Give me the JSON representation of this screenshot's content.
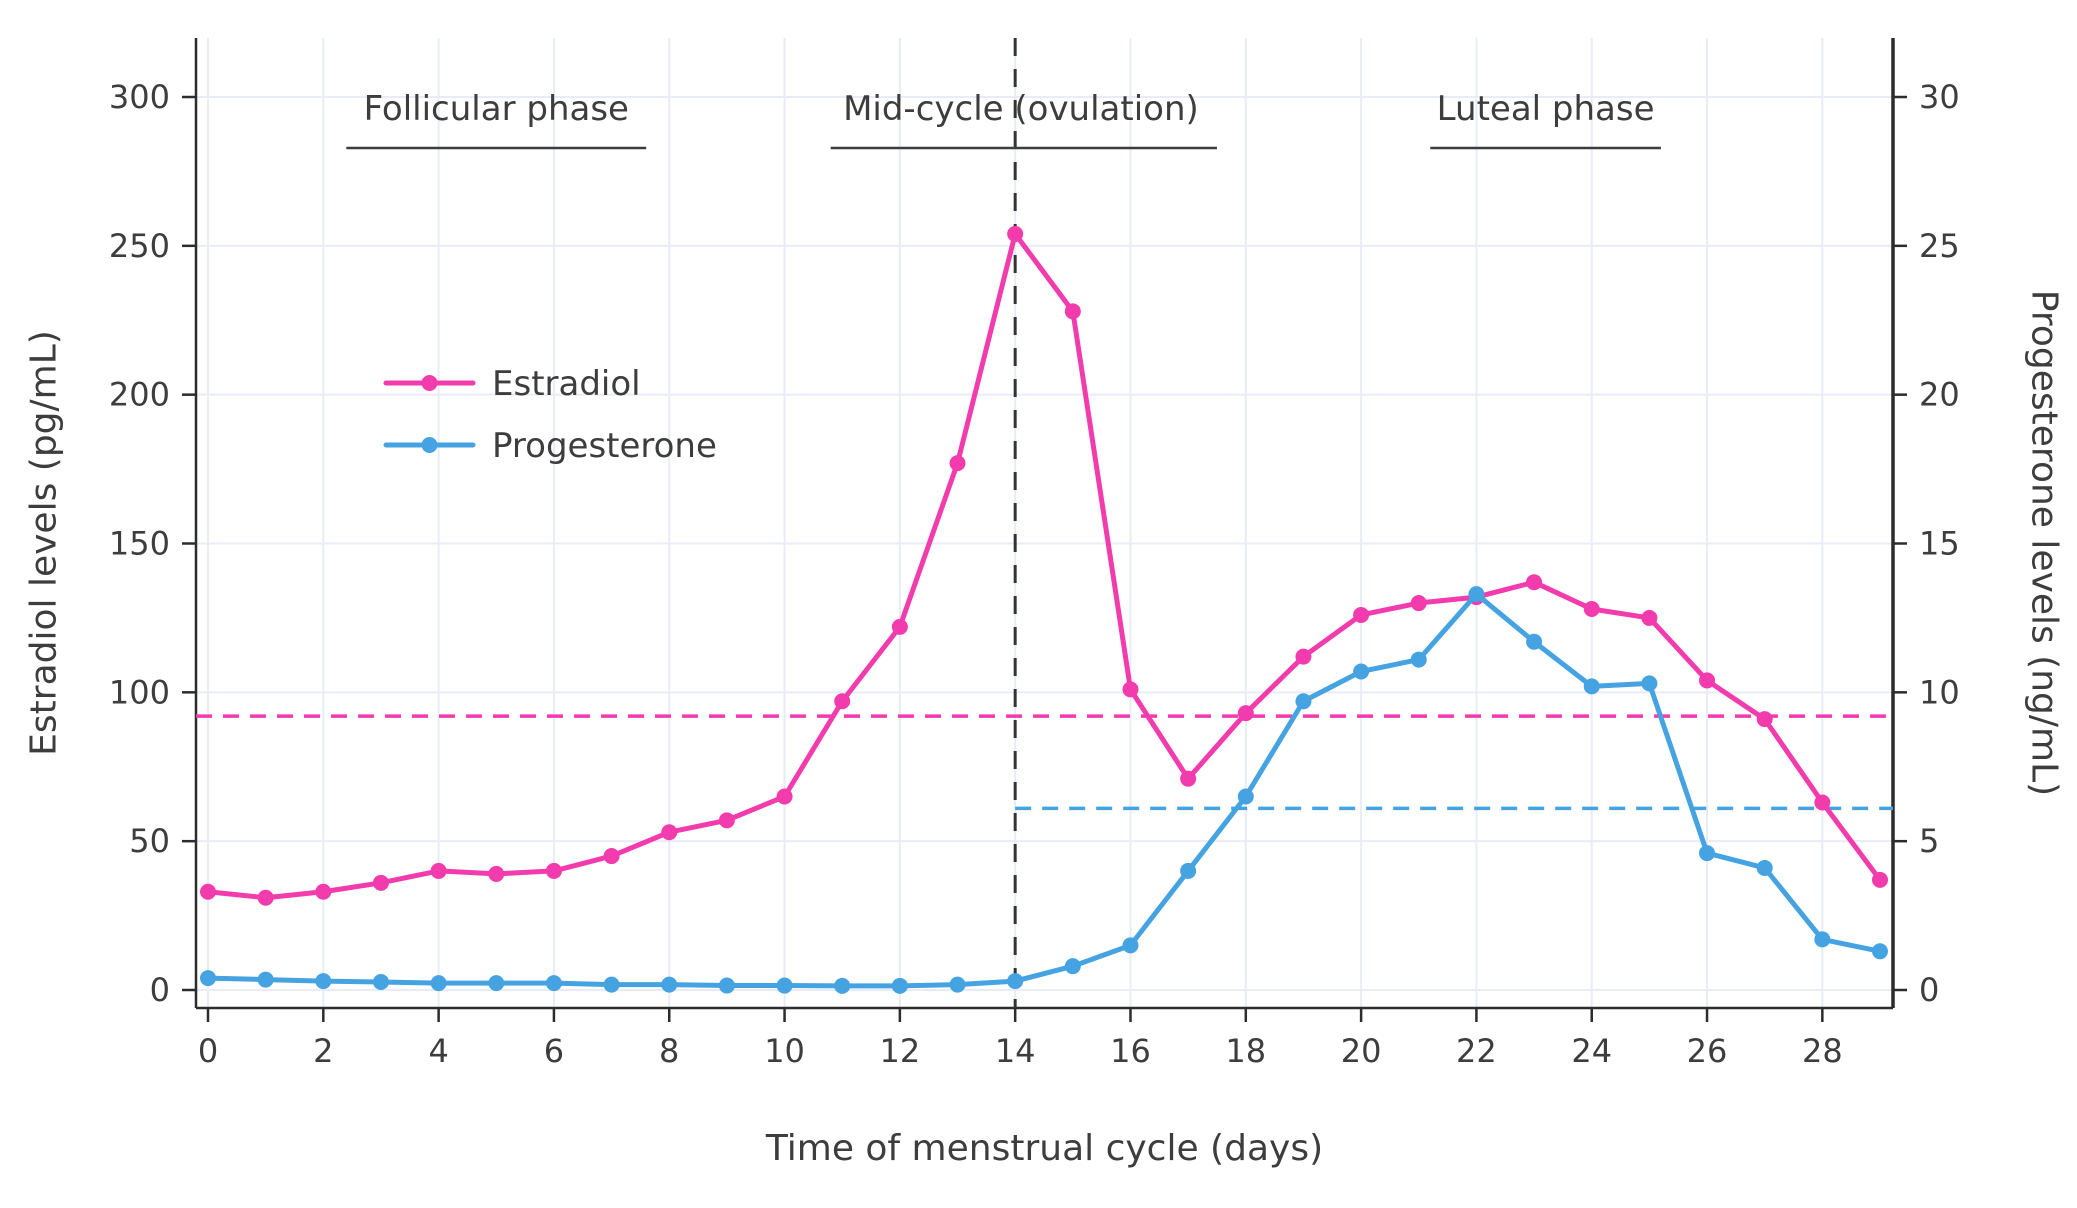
{
  "chart_data": {
    "type": "line",
    "title": "",
    "xlabel": "Time of menstrual cycle (days)",
    "ylabel_left": "Estradiol levels (pg/mL)",
    "ylabel_right": "Progesterone levels (ng/mL)",
    "x": [
      0,
      1,
      2,
      3,
      4,
      5,
      6,
      7,
      8,
      9,
      10,
      11,
      12,
      13,
      14,
      15,
      16,
      17,
      18,
      19,
      20,
      21,
      22,
      23,
      24,
      25,
      26,
      27,
      28,
      29
    ],
    "x_ticks": [
      0,
      2,
      4,
      6,
      8,
      10,
      12,
      14,
      16,
      18,
      20,
      22,
      24,
      26,
      28
    ],
    "xlim": [
      0,
      29
    ],
    "ylim_left": [
      0,
      300
    ],
    "yticks_left": [
      0,
      50,
      100,
      150,
      200,
      250,
      300
    ],
    "ylim_right": [
      0,
      30
    ],
    "yticks_right": [
      0,
      5,
      10,
      15,
      20,
      25,
      30
    ],
    "grid": true,
    "series": [
      {
        "name": "Estradiol",
        "axis": "left",
        "color": "#f23cae",
        "values": [
          33,
          31,
          33,
          36,
          40,
          39,
          40,
          45,
          53,
          57,
          65,
          97,
          122,
          177,
          254,
          228,
          101,
          71,
          93,
          112,
          126,
          130,
          132,
          137,
          128,
          125,
          104,
          91,
          63,
          37
        ]
      },
      {
        "name": "Progesterone",
        "axis": "right",
        "color": "#45a3e2",
        "values": [
          0.4,
          0.35,
          0.3,
          0.27,
          0.23,
          0.23,
          0.23,
          0.18,
          0.18,
          0.15,
          0.15,
          0.14,
          0.14,
          0.18,
          0.3,
          0.8,
          1.5,
          4.0,
          6.5,
          9.7,
          10.7,
          11.1,
          13.3,
          11.7,
          10.2,
          10.3,
          4.6,
          4.1,
          1.7,
          1.3
        ]
      }
    ],
    "phase_annotations": [
      {
        "label": "Follicular phase",
        "x_center": 5.0,
        "underline_from": 2.4,
        "underline_to": 7.6
      },
      {
        "label": "Mid-cycle (ovulation)",
        "x_center": 14.1,
        "underline_from": 10.8,
        "underline_to": 17.5
      },
      {
        "label": "Luteal phase",
        "x_center": 23.2,
        "underline_from": 21.2,
        "underline_to": 25.2
      }
    ],
    "ovulation_vline": {
      "day": 14,
      "color": "#333333",
      "style": "dashed"
    },
    "reference_lines": [
      {
        "value": 92,
        "axis": "left",
        "color": "#f23cae",
        "style": "dashed",
        "start_day": null
      },
      {
        "value": 6.1,
        "axis": "right",
        "color": "#45a3e2",
        "style": "dashed",
        "start_day": 14
      }
    ],
    "legend": {
      "position": "upper-left-inside",
      "entries": [
        "Estradiol",
        "Progesterone"
      ]
    },
    "colors": {
      "text": "#3d3d3d",
      "grid": "#e9ecf6",
      "spine": "#2c2c2c"
    }
  }
}
